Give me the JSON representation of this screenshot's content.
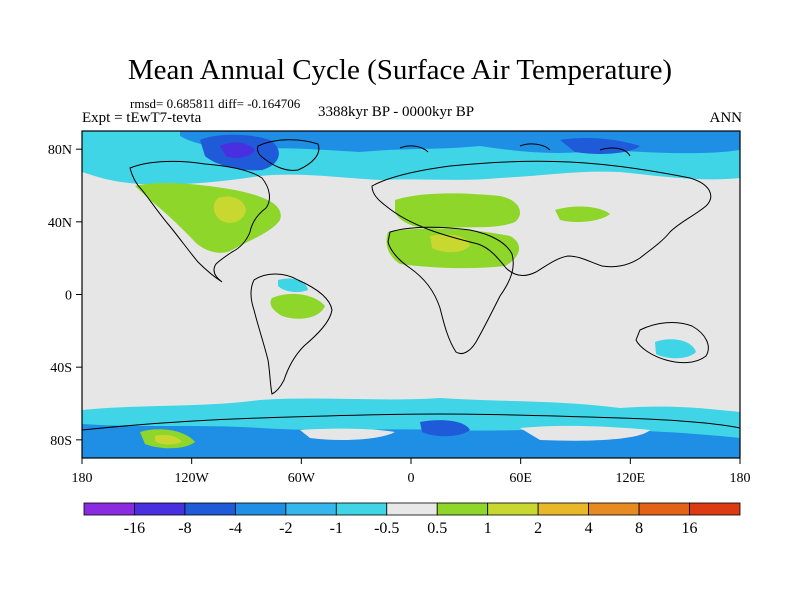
{
  "title": "Mean Annual Cycle (Surface Air Temperature)",
  "stats": "rmsd= 0.685811 diff= -0.164706",
  "experiment": "Expt = tEwT7-tevta",
  "period": "3388kyr BP - 0000kyr BP",
  "season": "ANN",
  "y_ticks": [
    {
      "lat": 80,
      "label": "80N"
    },
    {
      "lat": 40,
      "label": "40N"
    },
    {
      "lat": 0,
      "label": "0"
    },
    {
      "lat": -40,
      "label": "40S"
    },
    {
      "lat": -80,
      "label": "80S"
    }
  ],
  "x_ticks": [
    {
      "lon": -180,
      "label": "180"
    },
    {
      "lon": -120,
      "label": "120W"
    },
    {
      "lon": -60,
      "label": "60W"
    },
    {
      "lon": 0,
      "label": "0"
    },
    {
      "lon": 60,
      "label": "60E"
    },
    {
      "lon": 120,
      "label": "120E"
    },
    {
      "lon": 180,
      "label": "180"
    }
  ],
  "colorbar": {
    "colors": [
      "#8a2be2",
      "#4a2fe0",
      "#1f5ad8",
      "#1f8fe6",
      "#35b7ee",
      "#3fd4e6",
      "#e8e8e8",
      "#8ed62a",
      "#c8d830",
      "#e8b82a",
      "#e88a22",
      "#e46218",
      "#dc3a12"
    ],
    "labels": [
      "-16",
      "-8",
      "-4",
      "-2",
      "-1",
      "-0.5",
      "0.5",
      "1",
      "2",
      "4",
      "8",
      "16"
    ]
  },
  "field_colors": {
    "background": "#e6e6e6",
    "cool_light": "#3fd4e6",
    "cool_medium": "#1f8fe6",
    "cool_dark": "#1f5ad8",
    "cool_darker": "#4a2fe0",
    "warm_light": "#8ed62a",
    "warm_medium": "#c8d830"
  }
}
